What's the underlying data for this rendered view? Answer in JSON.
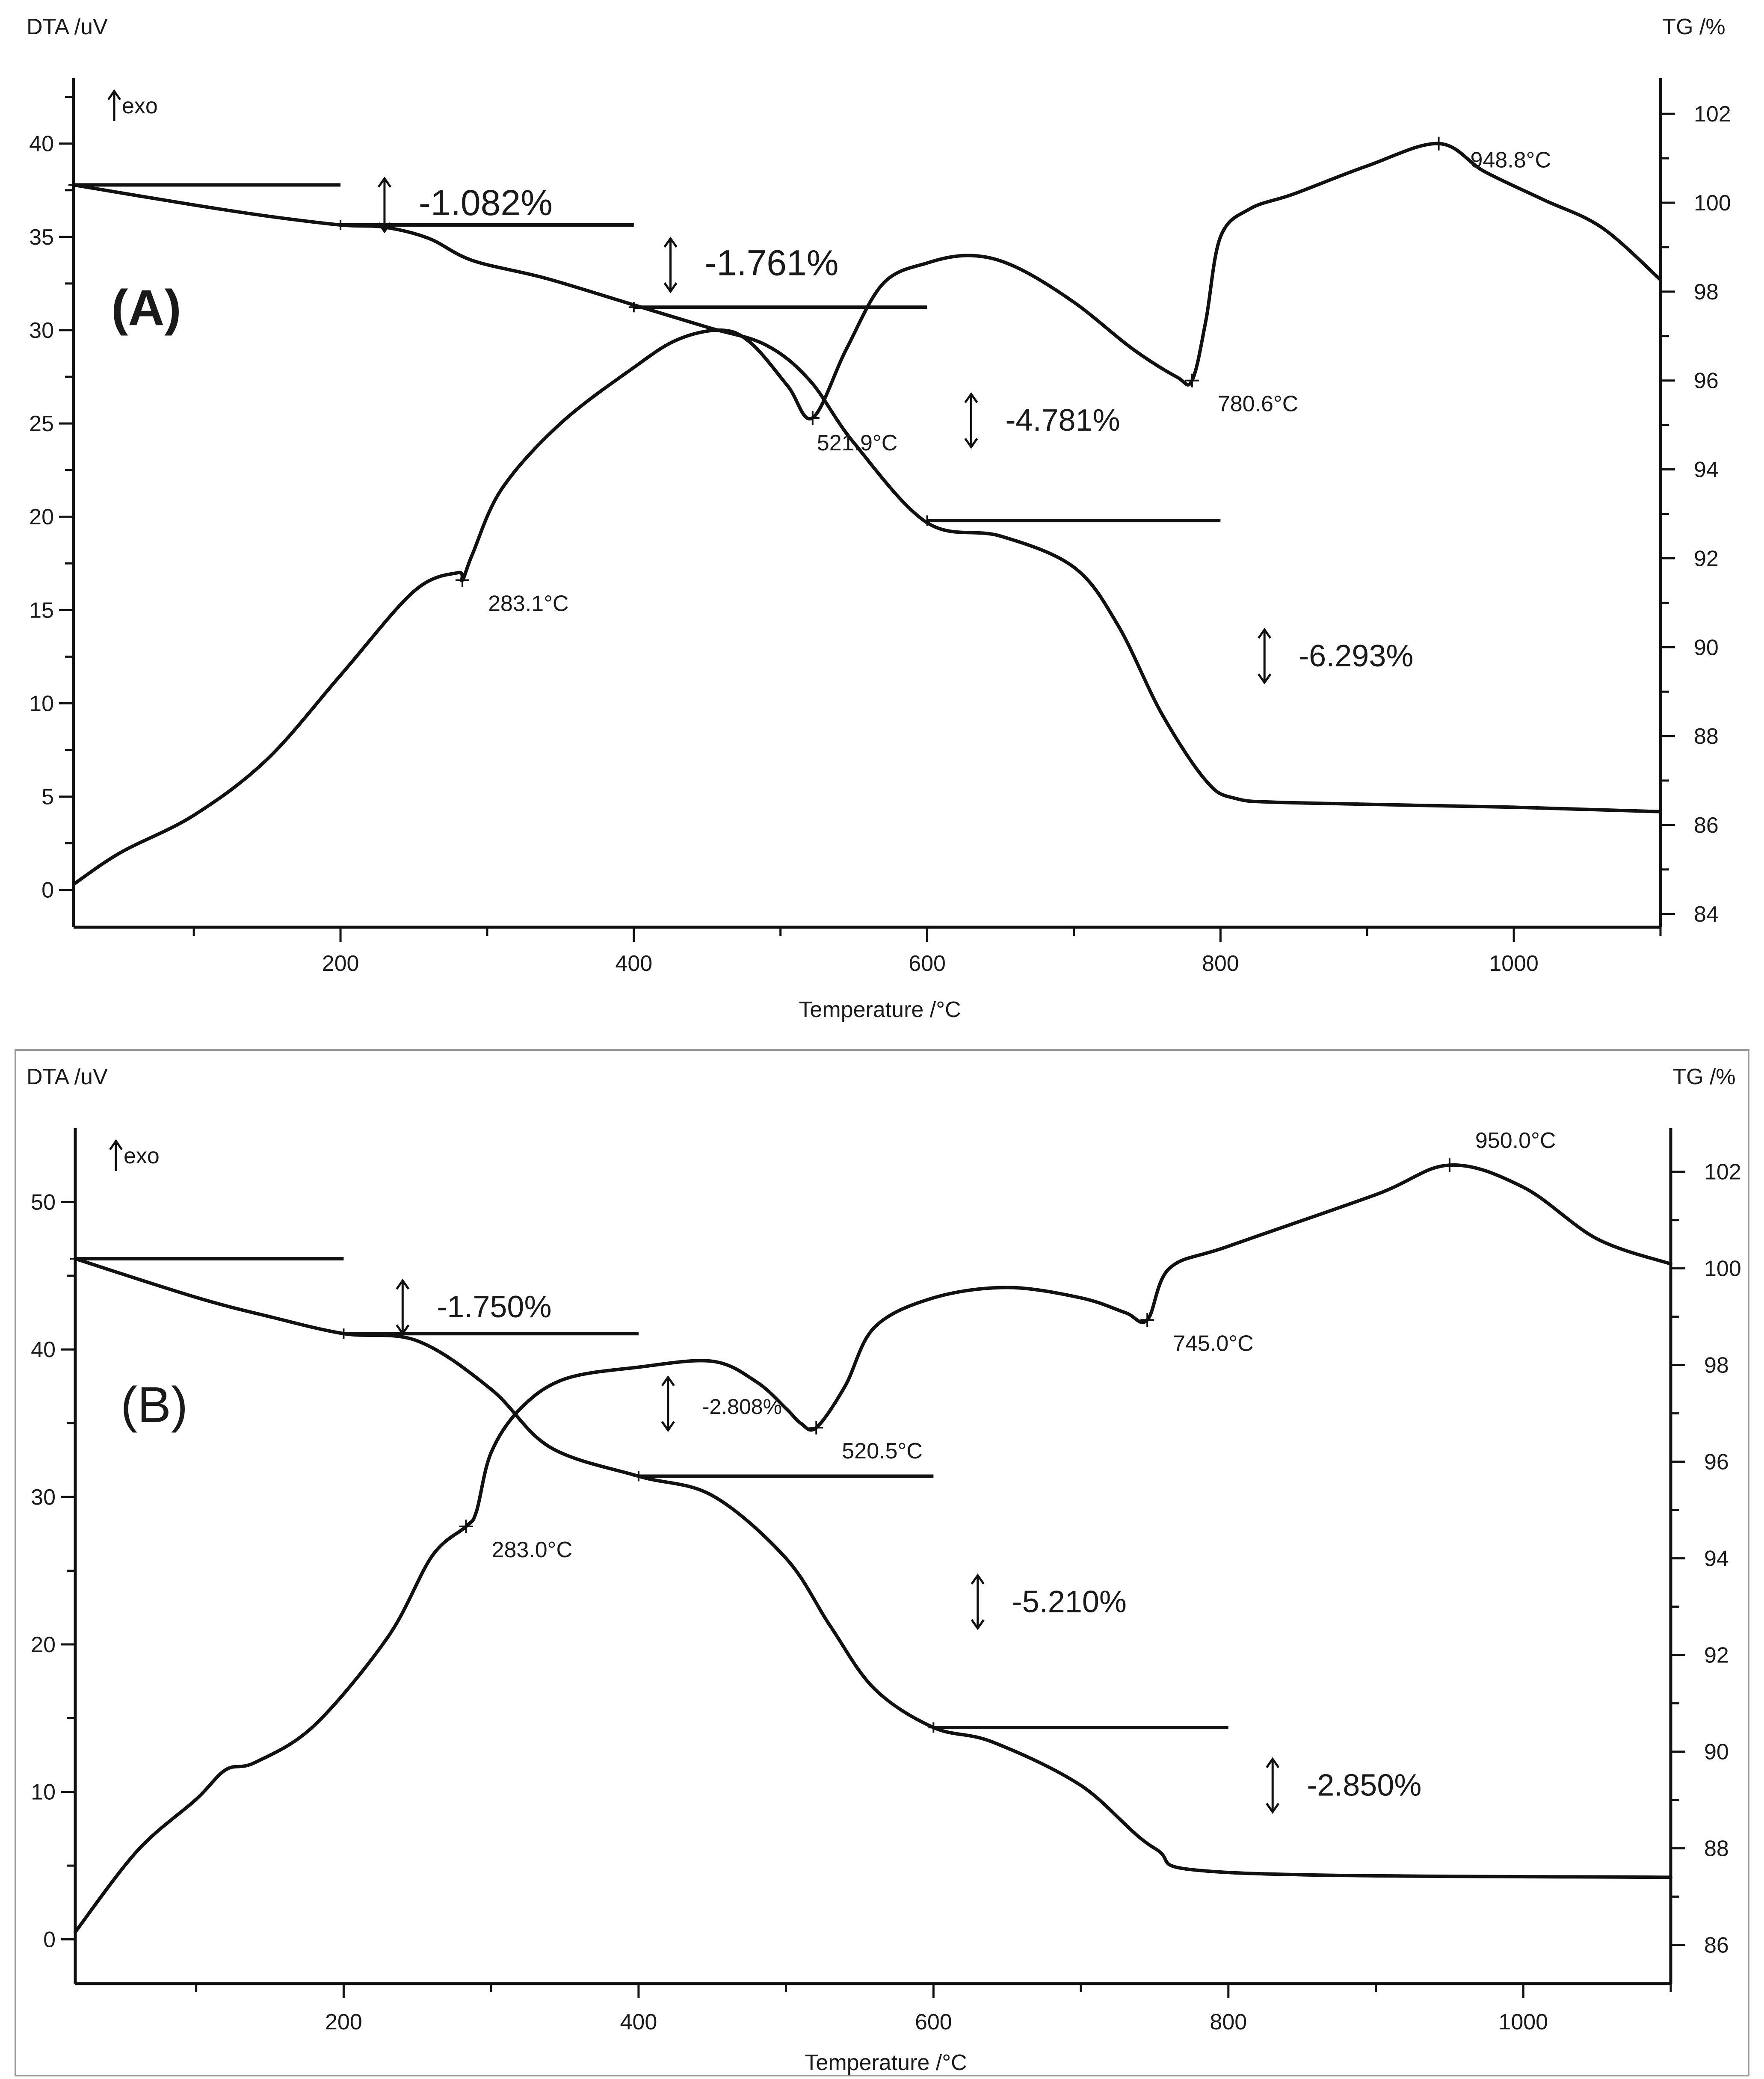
{
  "chart_data": [
    {
      "type": "line",
      "panel_label": "(A)",
      "x_axis": {
        "label": "Temperature /°C",
        "range": [
          18,
          1100
        ],
        "ticks": [
          200,
          400,
          600,
          800,
          1000
        ]
      },
      "y_left": {
        "label": "DTA /uV",
        "range": [
          -2.0,
          43.5
        ],
        "ticks": [
          0,
          5,
          10,
          15,
          20,
          25,
          30,
          35,
          40
        ]
      },
      "y_right": {
        "label": "TG /%",
        "range": [
          83.7,
          102.8
        ],
        "ticks": [
          84,
          86,
          88,
          90,
          92,
          94,
          96,
          98,
          100,
          102
        ]
      },
      "exo_label": "exo",
      "series": [
        {
          "name": "TG",
          "axis": "right",
          "x": [
            18,
            100,
            150,
            200,
            230,
            260,
            290,
            340,
            400,
            450,
            490,
            520,
            550,
            600,
            650,
            700,
            730,
            760,
            790,
            810,
            850,
            1000,
            1100
          ],
          "y": [
            100.4,
            99.95,
            99.7,
            99.5,
            99.45,
            99.2,
            98.7,
            98.3,
            97.7,
            97.2,
            96.8,
            96.0,
            94.6,
            92.8,
            92.5,
            91.8,
            90.5,
            88.5,
            87.0,
            86.6,
            86.5,
            86.4,
            86.3
          ]
        },
        {
          "name": "DTA",
          "axis": "left",
          "x": [
            18,
            50,
            100,
            150,
            200,
            250,
            280,
            283.1,
            290,
            310,
            350,
            400,
            430,
            460,
            480,
            505,
            521.9,
            545,
            570,
            600,
            630,
            660,
            700,
            740,
            770,
            780.6,
            790,
            800,
            820,
            850,
            900,
            948.8,
            980,
            1020,
            1060,
            1100
          ],
          "y": [
            0.3,
            2.0,
            4.0,
            7.0,
            11.5,
            16.0,
            17.0,
            16.6,
            18.0,
            21.5,
            25.0,
            28.0,
            29.5,
            30.0,
            29.3,
            27.0,
            25.3,
            29.0,
            32.5,
            33.6,
            34.0,
            33.4,
            31.5,
            29.0,
            27.5,
            27.3,
            30.5,
            35.0,
            36.5,
            37.3,
            38.8,
            40.0,
            38.5,
            37.0,
            35.5,
            32.7
          ]
        }
      ],
      "step_lines": [
        {
          "y": 100.4,
          "x": [
            18,
            200
          ]
        },
        {
          "y": 99.5,
          "x": [
            200,
            400
          ]
        },
        {
          "y": 97.65,
          "x": [
            400,
            600
          ]
        },
        {
          "y": 92.85,
          "x": [
            600,
            800
          ]
        }
      ],
      "annotations": [
        {
          "text": "-1.082%",
          "x": 230,
          "y": 99.95,
          "axis": "right"
        },
        {
          "text": "-1.761%",
          "x": 425,
          "y": 98.6,
          "axis": "right"
        },
        {
          "text": "-4.781%",
          "x": 630,
          "y": 95.1,
          "axis": "right"
        },
        {
          "text": "-6.293%",
          "x": 830,
          "y": 89.8,
          "axis": "right"
        },
        {
          "text": "283.1°C",
          "x": 283.1,
          "y": 16.6,
          "axis": "left"
        },
        {
          "text": "521.9°C",
          "x": 521.9,
          "y": 25.3,
          "axis": "left"
        },
        {
          "text": "780.6°C",
          "x": 780.6,
          "y": 27.3,
          "axis": "left"
        },
        {
          "text": "948.8°C",
          "x": 948.8,
          "y": 40.0,
          "axis": "left"
        }
      ]
    },
    {
      "type": "line",
      "panel_label": "(B)",
      "x_axis": {
        "label": "Temperature /°C",
        "range": [
          18,
          1100
        ],
        "ticks": [
          200,
          400,
          600,
          800,
          1000
        ]
      },
      "y_left": {
        "label": "DTA /uV",
        "range": [
          -3,
          55
        ],
        "ticks": [
          0,
          10,
          20,
          30,
          40,
          50
        ]
      },
      "y_right": {
        "label": "TG /%",
        "range": [
          85.2,
          102.9
        ],
        "ticks": [
          86,
          88,
          90,
          92,
          94,
          96,
          98,
          100,
          102
        ]
      },
      "exo_label": "exo",
      "series": [
        {
          "name": "TG",
          "axis": "right",
          "x": [
            18,
            100,
            150,
            200,
            250,
            300,
            340,
            400,
            450,
            500,
            530,
            560,
            600,
            640,
            700,
            750,
            800,
            1100
          ],
          "y": [
            100.2,
            99.4,
            99.0,
            98.65,
            98.5,
            97.5,
            96.3,
            95.7,
            95.3,
            94.0,
            92.6,
            91.3,
            90.5,
            90.2,
            89.3,
            88.0,
            87.5,
            87.4
          ]
        },
        {
          "name": "DTA",
          "axis": "left",
          "x": [
            18,
            60,
            100,
            120,
            140,
            180,
            230,
            260,
            283,
            290,
            300,
            320,
            350,
            400,
            450,
            480,
            500,
            510,
            520.5,
            540,
            560,
            600,
            650,
            700,
            730,
            745,
            760,
            800,
            900,
            950,
            1000,
            1050,
            1100
          ],
          "y": [
            0.5,
            6.0,
            9.5,
            11.5,
            12.0,
            14.5,
            20.5,
            26.0,
            28.0,
            29.0,
            33.0,
            36.0,
            38.0,
            38.8,
            39.2,
            37.8,
            36.0,
            35.0,
            34.7,
            37.5,
            41.5,
            43.5,
            44.2,
            43.5,
            42.5,
            42.0,
            45.5,
            47.0,
            50.5,
            52.5,
            51.0,
            47.5,
            45.8
          ]
        }
      ],
      "step_lines": [
        {
          "y": 100.2,
          "x": [
            18,
            200
          ]
        },
        {
          "y": 98.65,
          "x": [
            200,
            400
          ]
        },
        {
          "y": 95.7,
          "x": [
            400,
            600
          ]
        },
        {
          "y": 90.5,
          "x": [
            600,
            800
          ]
        }
      ],
      "annotations": [
        {
          "text": "-1.750%",
          "x": 240,
          "y": 99.2,
          "axis": "right"
        },
        {
          "text": "-2.808%",
          "x": 420,
          "y": 97.2,
          "axis": "right"
        },
        {
          "text": "-5.210%",
          "x": 630,
          "y": 93.1,
          "axis": "right"
        },
        {
          "text": "-2.850%",
          "x": 830,
          "y": 89.3,
          "axis": "right"
        },
        {
          "text": "283.0°C",
          "x": 283,
          "y": 28.0,
          "axis": "left"
        },
        {
          "text": "520.5°C",
          "x": 520.5,
          "y": 34.7,
          "axis": "left"
        },
        {
          "text": "745.0°C",
          "x": 745,
          "y": 42.0,
          "axis": "left"
        },
        {
          "text": "950.0°C",
          "x": 950,
          "y": 52.5,
          "axis": "left"
        }
      ]
    }
  ]
}
